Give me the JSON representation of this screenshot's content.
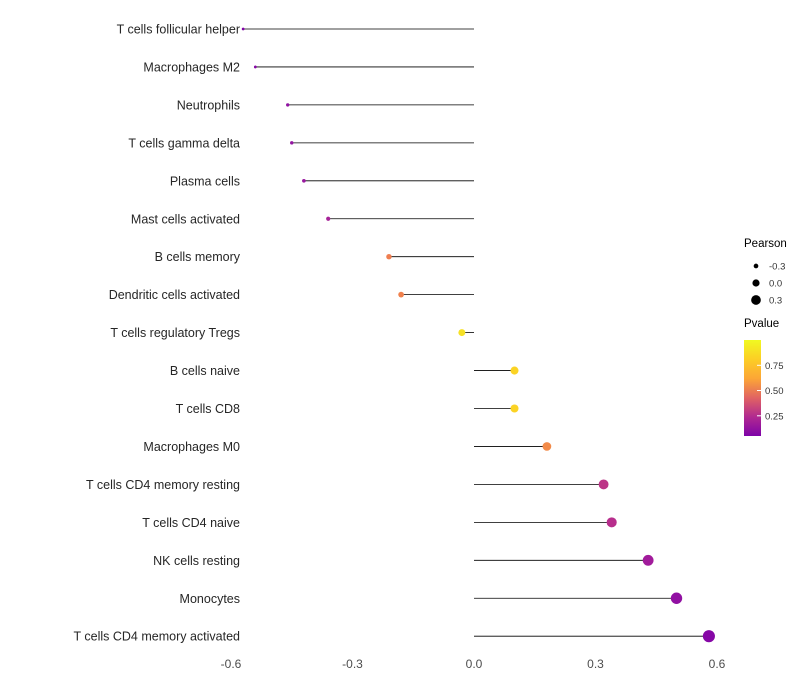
{
  "chart_data": {
    "type": "lollipop",
    "title": "",
    "xlabel": "",
    "ylabel": "",
    "xlim": [
      -0.72,
      0.78
    ],
    "grid": false,
    "x_ticks": [
      {
        "value": -0.6,
        "label": "-0.6"
      },
      {
        "value": -0.3,
        "label": "-0.3"
      },
      {
        "value": 0.0,
        "label": "0.0"
      },
      {
        "value": 0.3,
        "label": "0.3"
      },
      {
        "value": 0.6,
        "label": "0.6"
      }
    ],
    "items": [
      {
        "label": "T cells follicular helper",
        "pearson": -0.57,
        "pvalue": 0.02,
        "color": "#8104A7"
      },
      {
        "label": "Macrophages M2",
        "pearson": -0.54,
        "pvalue": 0.03,
        "color": "#8708A6"
      },
      {
        "label": "Neutrophils",
        "pearson": -0.46,
        "pvalue": 0.06,
        "color": "#9013A2"
      },
      {
        "label": "T cells gamma delta",
        "pearson": -0.45,
        "pvalue": 0.07,
        "color": "#9315A1"
      },
      {
        "label": "Plasma cells",
        "pearson": -0.42,
        "pvalue": 0.09,
        "color": "#99189F"
      },
      {
        "label": "Mast cells activated",
        "pearson": -0.36,
        "pvalue": 0.15,
        "color": "#A62398"
      },
      {
        "label": "B cells memory",
        "pearson": -0.21,
        "pvalue": 0.55,
        "color": "#EF7E50"
      },
      {
        "label": "Dendritic cells activated",
        "pearson": -0.18,
        "pvalue": 0.58,
        "color": "#F0814D"
      },
      {
        "label": "T cells regulatory  Tregs",
        "pearson": -0.03,
        "pvalue": 0.85,
        "color": "#F6E126"
      },
      {
        "label": "B cells naive",
        "pearson": 0.1,
        "pvalue": 0.75,
        "color": "#FBD324"
      },
      {
        "label": "T cells CD8",
        "pearson": 0.1,
        "pvalue": 0.75,
        "color": "#FBD324"
      },
      {
        "label": "Macrophages M0",
        "pearson": 0.18,
        "pvalue": 0.55,
        "color": "#F28A49"
      },
      {
        "label": "T cells CD4 memory resting",
        "pearson": 0.32,
        "pvalue": 0.2,
        "color": "#BC3587"
      },
      {
        "label": "T cells CD4 naive",
        "pearson": 0.34,
        "pvalue": 0.18,
        "color": "#B72E8C"
      },
      {
        "label": "NK cells resting",
        "pearson": 0.43,
        "pvalue": 0.1,
        "color": "#A11B9B"
      },
      {
        "label": "Monocytes",
        "pearson": 0.5,
        "pvalue": 0.05,
        "color": "#9110A2"
      },
      {
        "label": "T cells CD4 memory activated",
        "pearson": 0.58,
        "pvalue": 0.02,
        "color": "#8607A6"
      }
    ],
    "legend": {
      "size": {
        "title": "Pearson",
        "entries": [
          {
            "label": "-0.3",
            "value": -0.3
          },
          {
            "label": "0.0",
            "value": 0.0
          },
          {
            "label": "0.3",
            "value": 0.3
          }
        ]
      },
      "color": {
        "title": "Pvalue",
        "ticks": [
          {
            "label": "0.75",
            "value": 0.75
          },
          {
            "label": "0.50",
            "value": 0.5
          },
          {
            "label": "0.25",
            "value": 0.25
          }
        ],
        "gradient_top_to_bottom": [
          "#F0F921",
          "#FCCE25",
          "#FCA636",
          "#E16462",
          "#B12A90",
          "#7E03A8"
        ],
        "domain_bottom_to_top": [
          0.05,
          1.0
        ]
      }
    },
    "style": {
      "stem_color": "#000000",
      "axis_text_color": "#4D4D4D",
      "category_text_color": "#262626",
      "legend_text_color": "#333333",
      "legend_title_color": "#000000",
      "background": "#FFFFFF"
    }
  }
}
